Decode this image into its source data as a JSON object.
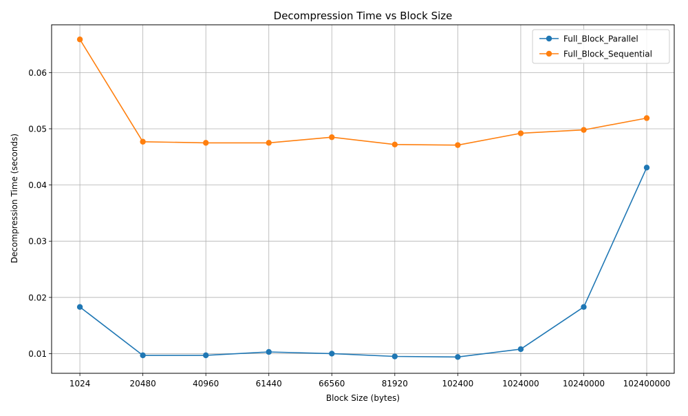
{
  "chart_data": {
    "type": "line",
    "title": "Decompression Time vs Block Size",
    "xlabel": "Block Size (bytes)",
    "ylabel": "Decompression Time (seconds)",
    "categories": [
      "1024",
      "20480",
      "40960",
      "61440",
      "66560",
      "81920",
      "102400",
      "1024000",
      "10240000",
      "102400000"
    ],
    "ylim": [
      0.0065,
      0.0685
    ],
    "yticks": [
      0.01,
      0.02,
      0.03,
      0.04,
      0.05,
      0.06
    ],
    "ytick_labels": [
      "0.01",
      "0.02",
      "0.03",
      "0.04",
      "0.05",
      "0.06"
    ],
    "grid": true,
    "legend_position": "top-right",
    "series": [
      {
        "name": "Full_Block_Parallel",
        "color": "#1f77b4",
        "marker": "circle",
        "values": [
          0.0183,
          0.0097,
          0.0097,
          0.0103,
          0.01,
          0.0095,
          0.0094,
          0.0108,
          0.0183,
          0.0431
        ]
      },
      {
        "name": "Full_Block_Sequential",
        "color": "#ff7f0e",
        "marker": "circle",
        "values": [
          0.0659,
          0.0477,
          0.0475,
          0.0475,
          0.0485,
          0.0472,
          0.0471,
          0.0492,
          0.0498,
          0.0519
        ]
      }
    ]
  }
}
